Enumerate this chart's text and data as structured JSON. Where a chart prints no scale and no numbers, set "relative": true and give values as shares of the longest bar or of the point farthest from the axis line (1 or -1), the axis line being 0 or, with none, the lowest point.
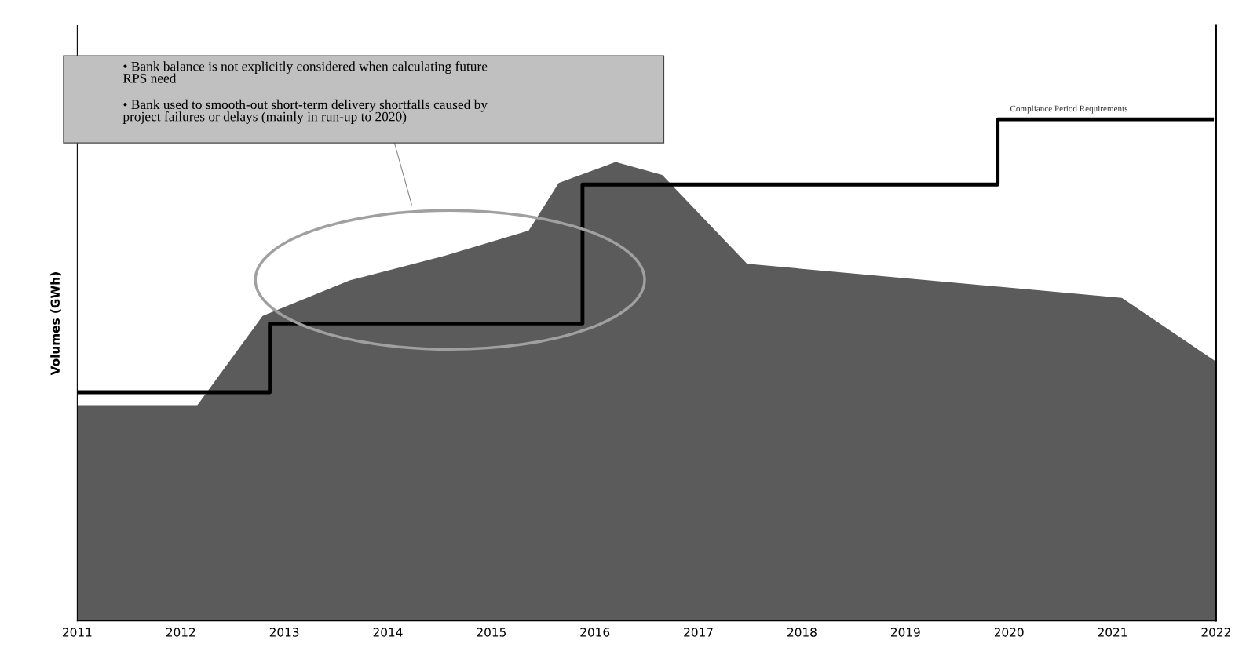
{
  "chart_data": {
    "type": "area",
    "ylabel": "Volumes (GWh)",
    "relative": true,
    "xlim": [
      2011,
      2022
    ],
    "xticks": [
      2011,
      2012,
      2013,
      2014,
      2015,
      2016,
      2017,
      2018,
      2019,
      2020,
      2021,
      2022
    ],
    "grid": false,
    "annotations": [
      "• Bank balance is not explicitly considered when calculating future\nRPS need",
      "• Bank used to smooth-out short-term delivery shortfalls caused by\nproject failures or delays (mainly in run-up to 2020)"
    ],
    "series": [
      {
        "color": "#5b5b5b",
        "x": [
          2011.0,
          2012.16,
          2012.79,
          2013.63,
          2014.55,
          2015.36,
          2015.65,
          2016.2,
          2016.65,
          2017.47,
          2021.09,
          2022.0
        ],
        "values": [
          0.43,
          0.43,
          0.608,
          0.679,
          0.728,
          0.778,
          0.873,
          0.915,
          0.889,
          0.712,
          0.644,
          0.517
        ]
      },
      {
        "type": "step",
        "name": "Compliance Period Requirements",
        "color": "#000000",
        "x": [
          2011.0,
          2012.86,
          2015.88,
          2019.89,
          2021.96
        ],
        "values": [
          0.456,
          0.593,
          0.87,
          1.0,
          1.0
        ]
      }
    ]
  }
}
